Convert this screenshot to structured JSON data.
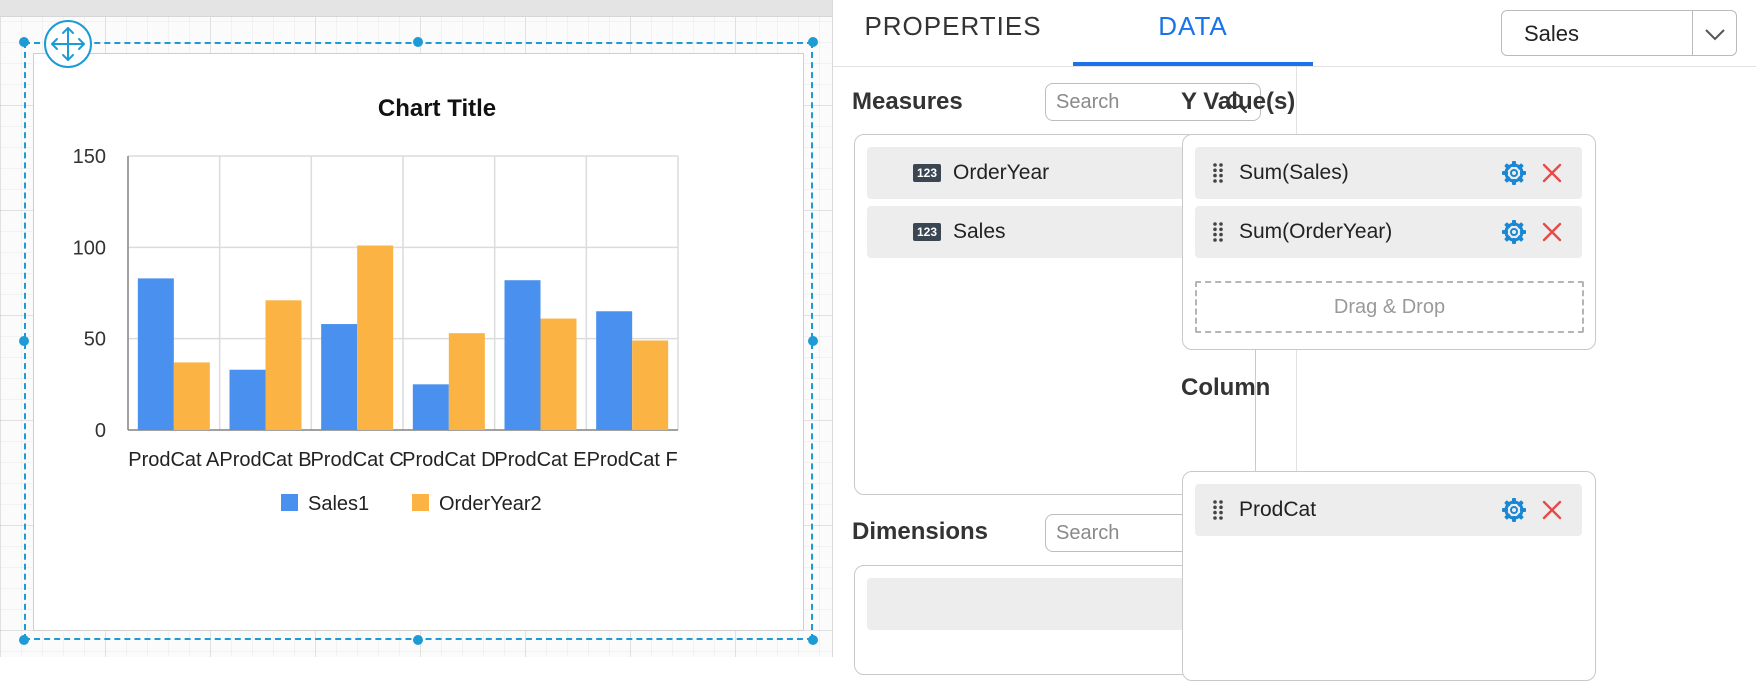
{
  "designer": {
    "chart_data": {
      "type": "bar",
      "title": "Chart Title",
      "categories": [
        "ProdCat A",
        "ProdCat B",
        "ProdCat C",
        "ProdCat D",
        "ProdCat E",
        "ProdCat F"
      ],
      "series": [
        {
          "name": "Sales1",
          "values": [
            83,
            33,
            58,
            25,
            82,
            65
          ],
          "color": "#4a90ef"
        },
        {
          "name": "OrderYear2",
          "values": [
            37,
            71,
            101,
            53,
            61,
            49
          ],
          "color": "#fbb444"
        }
      ],
      "y_ticks": [
        "0",
        "50",
        "100",
        "150"
      ],
      "ylim": [
        0,
        150
      ],
      "grid": true,
      "legend_position": "bottom"
    }
  },
  "panel": {
    "tabs": [
      {
        "label": "PROPERTIES",
        "active": false
      },
      {
        "label": "DATA",
        "active": true
      }
    ],
    "dataset_select": {
      "value": "Sales"
    },
    "measures": {
      "title": "Measures",
      "search_placeholder": "Search",
      "items": [
        {
          "badge": "123",
          "label": "OrderYear"
        },
        {
          "badge": "123",
          "label": "Sales"
        }
      ]
    },
    "dimensions": {
      "title": "Dimensions",
      "search_placeholder": "Search"
    },
    "y_values": {
      "title": "Y Value(s)",
      "items": [
        {
          "label": "Sum(Sales)"
        },
        {
          "label": "Sum(OrderYear)"
        }
      ],
      "drop_hint": "Drag & Drop"
    },
    "column": {
      "title": "Column",
      "items": [
        {
          "label": "ProdCat"
        }
      ]
    },
    "colors": {
      "accent": "#1a73e8",
      "gear": "#1a87d4",
      "remove": "#e84a4a"
    }
  }
}
